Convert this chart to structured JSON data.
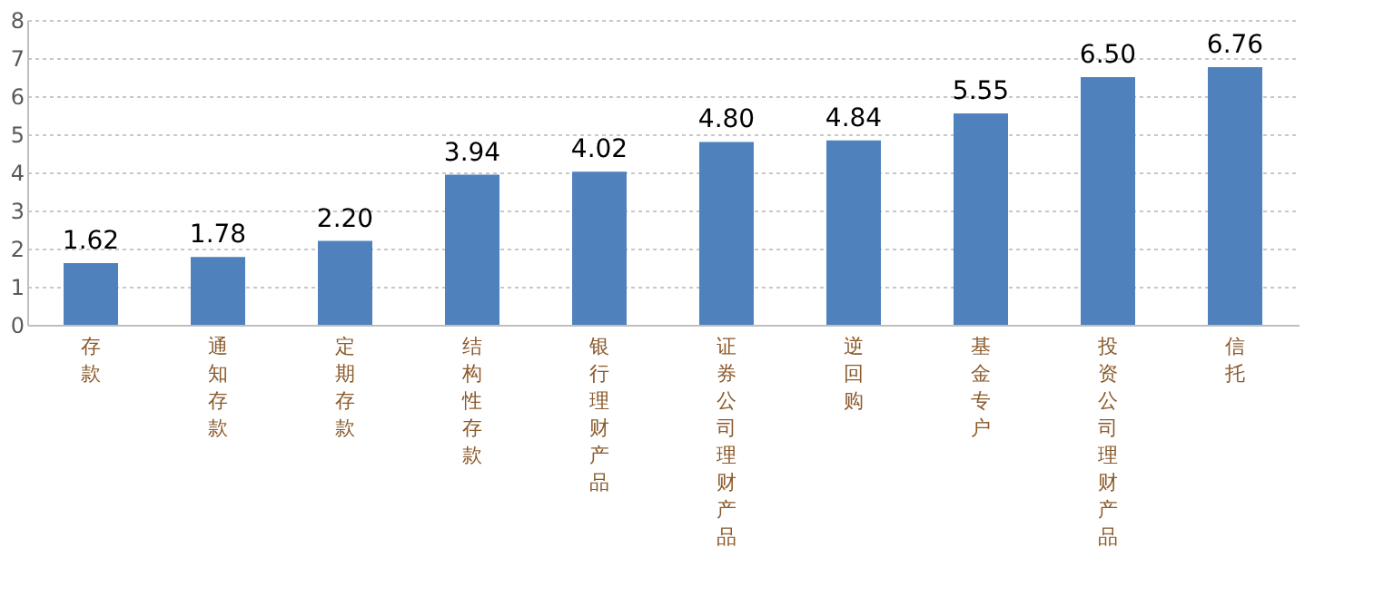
{
  "chart_data": {
    "type": "bar",
    "categories": [
      "存款",
      "通知存款",
      "定期存款",
      "结构性存款",
      "银行理财产品",
      "证券公司理财产品",
      "逆回购",
      "基金专户",
      "投资公司理财产品",
      "信托"
    ],
    "values": [
      1.62,
      1.78,
      2.2,
      3.94,
      4.02,
      4.8,
      4.84,
      5.55,
      6.5,
      6.76
    ],
    "value_labels": [
      "1.62",
      "1.78",
      "2.20",
      "3.94",
      "4.02",
      "4.80",
      "4.84",
      "5.55",
      "6.50",
      "6.76"
    ],
    "color": "#4f81bd",
    "ylim": [
      0,
      8
    ],
    "yticks": [
      0,
      1,
      2,
      3,
      4,
      5,
      6,
      7,
      8
    ],
    "grid": "y"
  }
}
